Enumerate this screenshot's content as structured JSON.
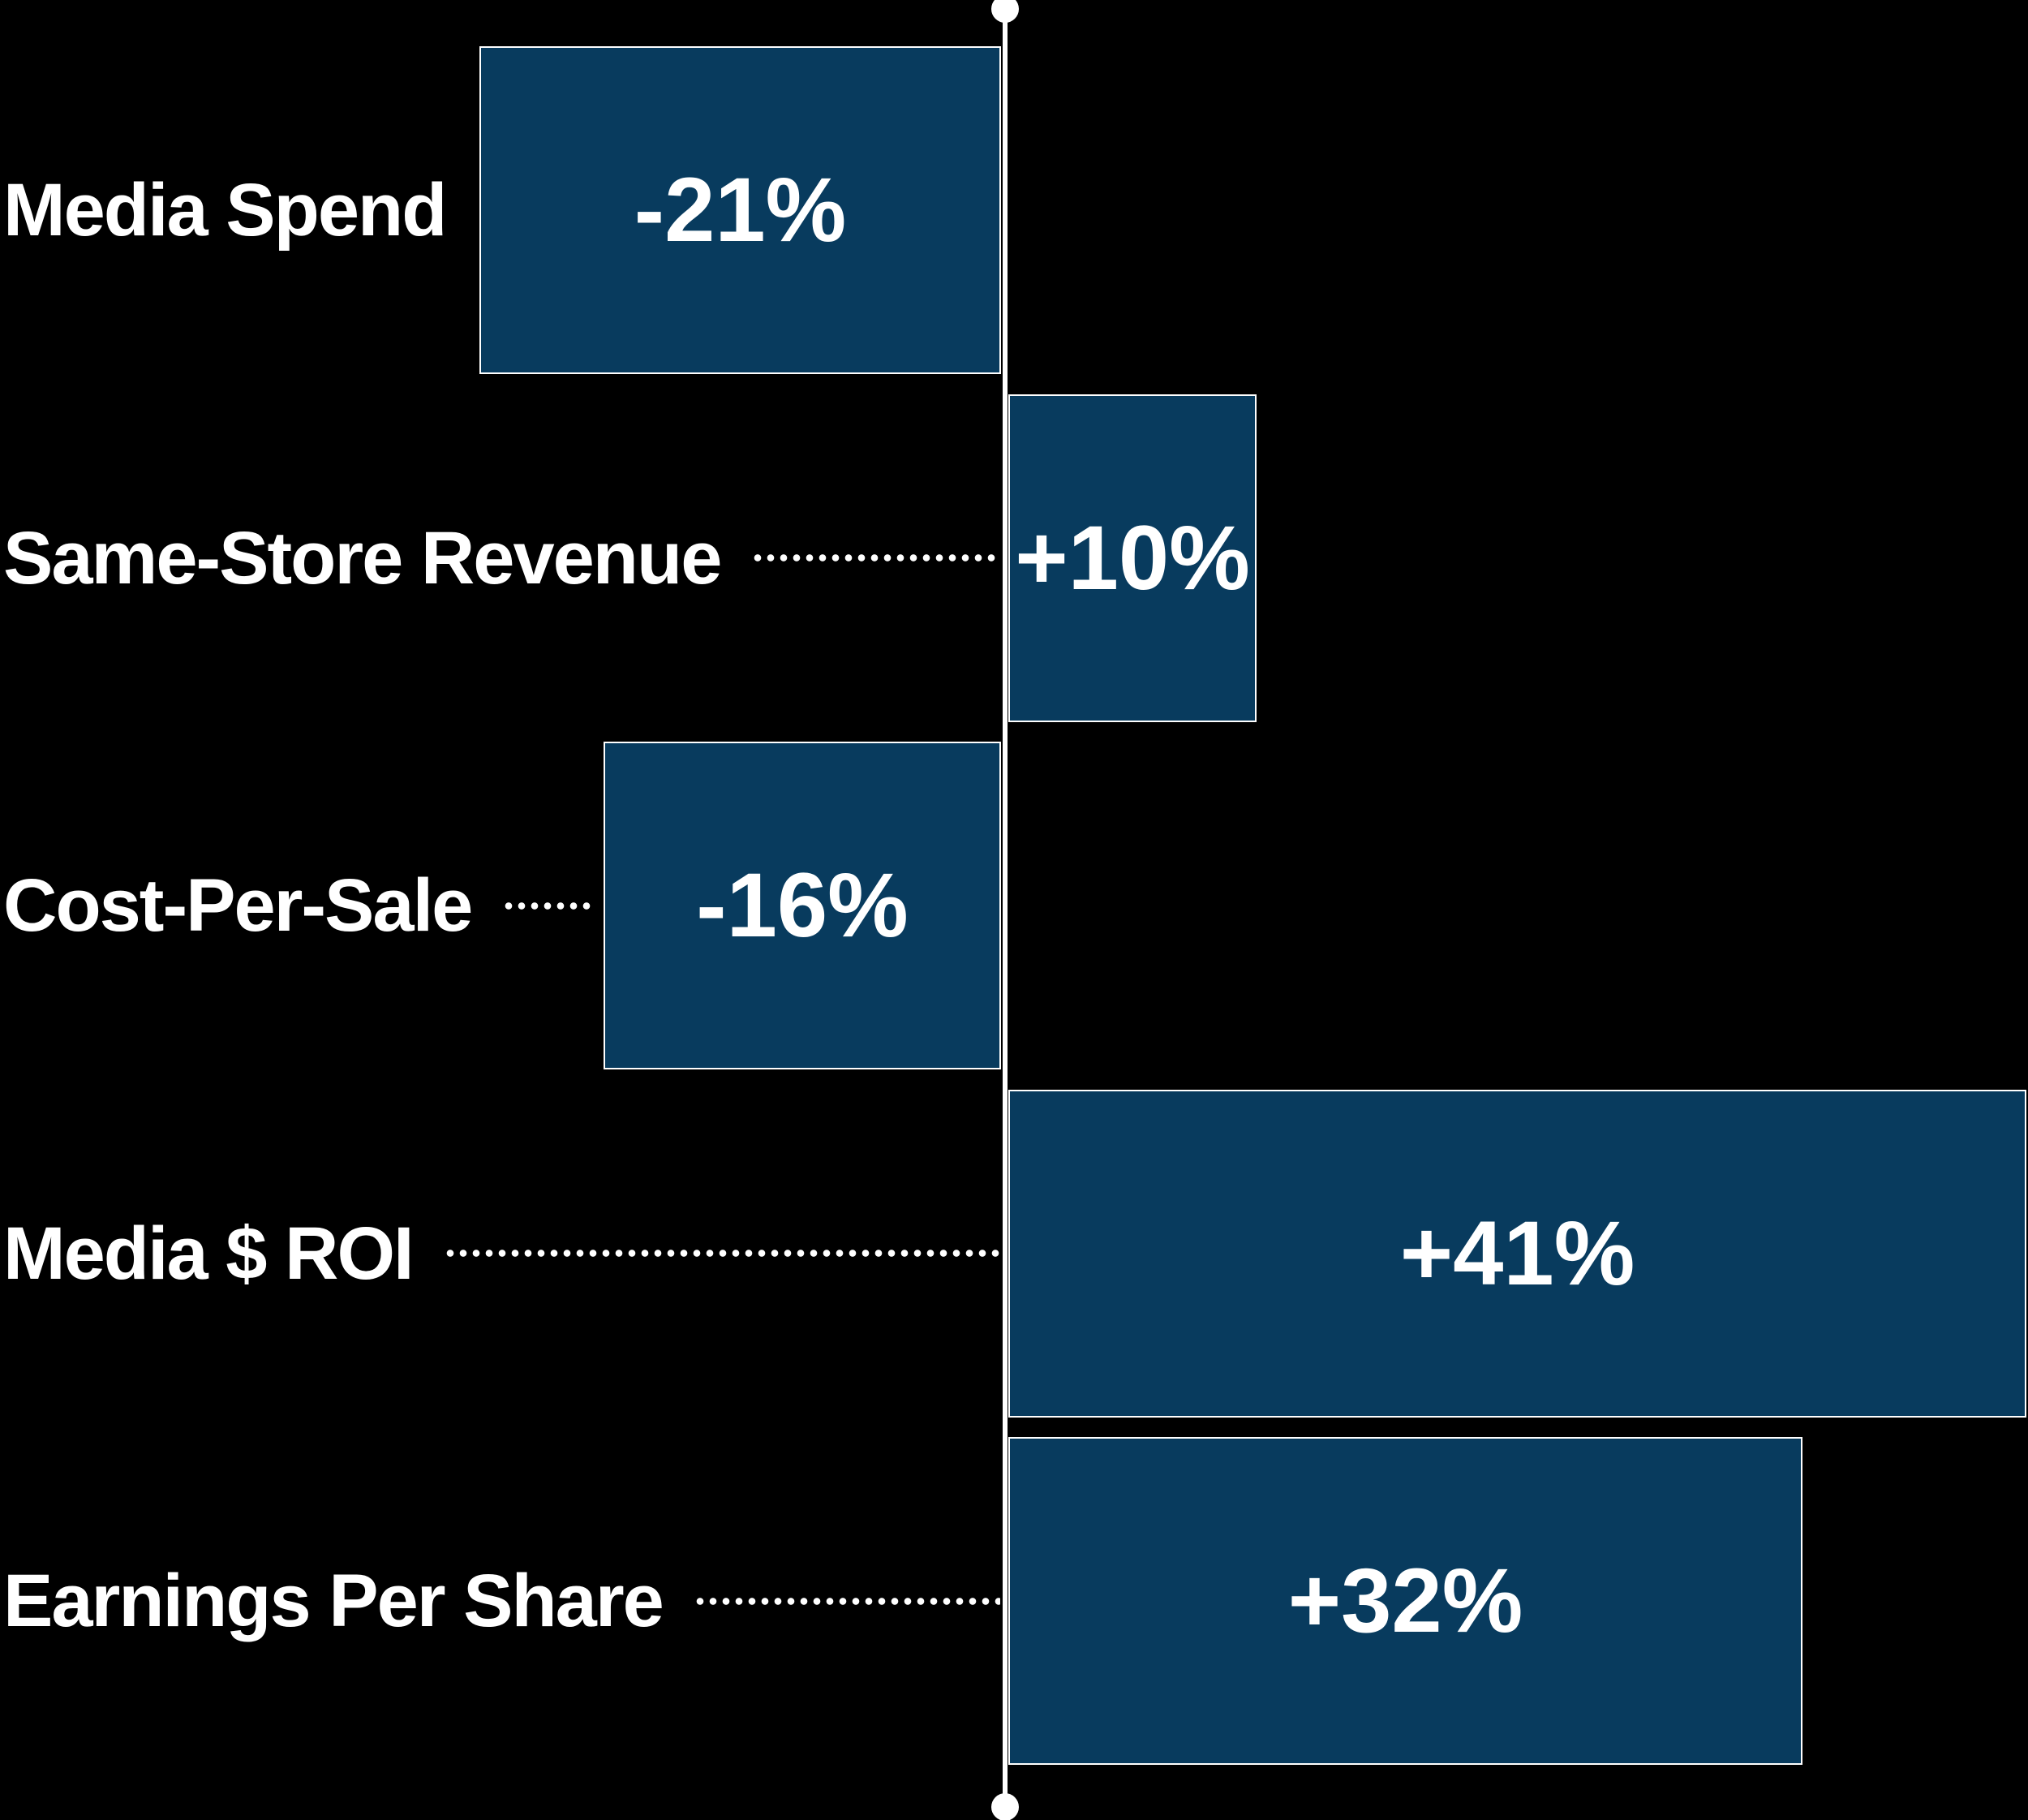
{
  "chart_data": {
    "type": "bar",
    "orientation": "horizontal",
    "title": "",
    "xlabel": "",
    "ylabel": "",
    "baseline": 0,
    "xlim": [
      -22,
      42
    ],
    "grid": false,
    "legend": false,
    "categories": [
      "Media Spend",
      "Same-Store Revenue",
      "Cost-Per-Sale",
      "Media $ ROI",
      "Earnings Per Share"
    ],
    "values": [
      -21,
      10,
      -16,
      41,
      32
    ],
    "value_labels": [
      "-21%",
      "+10%",
      "-16%",
      "+41%",
      "+32%"
    ],
    "axis_style": "vertical zero line with round end caps",
    "leader_style": "dotted line from label to bar edge",
    "colors": {
      "background": "#000000",
      "bar_fill": "#083B5E",
      "bar_outline": "#ffffff",
      "axis": "#ffffff",
      "label_text": "#ffffff",
      "value_text": "#ffffff"
    }
  }
}
